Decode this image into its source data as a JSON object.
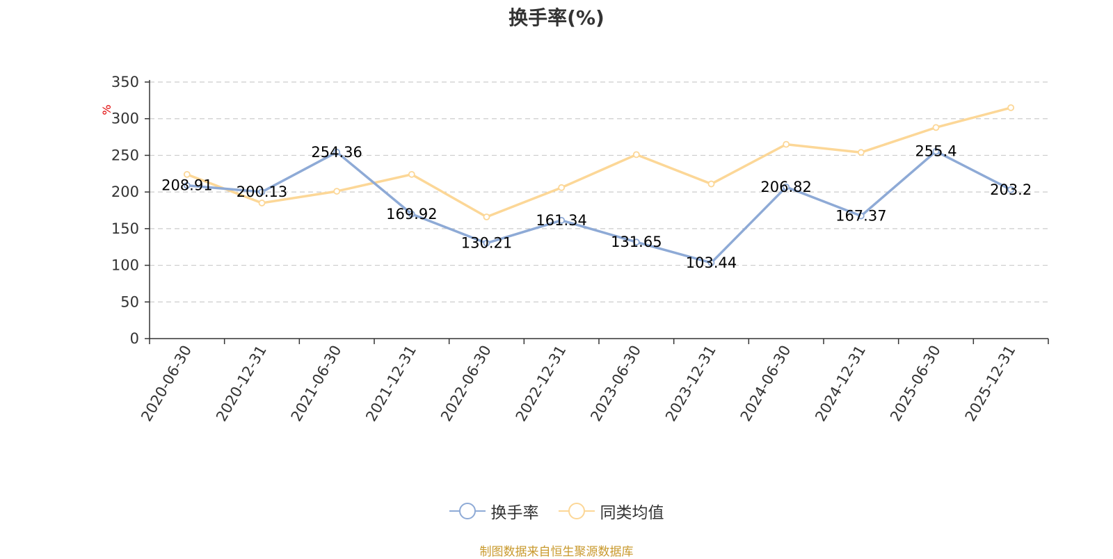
{
  "chart_data": {
    "type": "line",
    "title": "换手率(%)",
    "ylabel": "%",
    "ylim": [
      0,
      350
    ],
    "yticks": [
      0,
      50,
      100,
      150,
      200,
      250,
      300,
      350
    ],
    "grid": true,
    "legend_position": "bottom",
    "categories": [
      "2020-06-30",
      "2020-12-31",
      "2021-06-30",
      "2021-12-31",
      "2022-06-30",
      "2022-12-31",
      "2023-06-30",
      "2023-12-31",
      "2024-06-30",
      "2024-12-31",
      "2025-06-30",
      "2025-12-31"
    ],
    "series": [
      {
        "name": "换手率",
        "color": "#8eaad6",
        "labeled": true,
        "values": [
          208.91,
          200.13,
          254.36,
          169.92,
          130.21,
          161.34,
          131.65,
          103.44,
          206.82,
          167.37,
          255.4,
          203.2
        ]
      },
      {
        "name": "同类均值",
        "color": "#fcd797",
        "labeled": false,
        "values": [
          224,
          185,
          201,
          224,
          166,
          206,
          251,
          211,
          265,
          254,
          288,
          315
        ]
      }
    ]
  },
  "source": "制图数据来自恒生聚源数据库"
}
